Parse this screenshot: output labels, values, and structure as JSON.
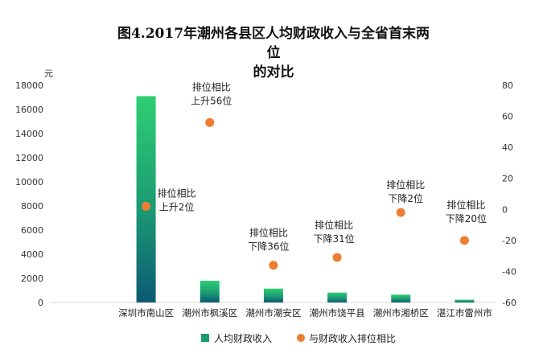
{
  "chart_data": {
    "type": "bar",
    "title_lines": [
      "图4.2017年潮州各县区人均财政收入与全省首末两",
      "位",
      "的对比"
    ],
    "y_unit_left": "元",
    "categories": [
      "深圳市南山区",
      "潮州市枫溪区",
      "潮州市潮安区",
      "潮州市饶平县",
      "潮州市湘桥区",
      "湛江市雷州市"
    ],
    "series": [
      {
        "name": "人均财政收入",
        "type": "bar",
        "axis": "left",
        "values": [
          17100,
          1800,
          1150,
          820,
          650,
          230
        ]
      },
      {
        "name": "与财政收入排位相比",
        "type": "scatter",
        "axis": "right",
        "values": [
          2,
          56,
          -36,
          -31,
          -2,
          -20
        ]
      }
    ],
    "annotations": [
      {
        "category_index": 0,
        "lines": [
          "排位相比",
          "上升2位"
        ]
      },
      {
        "category_index": 1,
        "lines": [
          "排位相比",
          "上升56位"
        ]
      },
      {
        "category_index": 2,
        "lines": [
          "排位相比",
          "下降36位"
        ]
      },
      {
        "category_index": 3,
        "lines": [
          "排位相比",
          "下降31位"
        ]
      },
      {
        "category_index": 4,
        "lines": [
          "排位相比",
          "下降2位"
        ]
      },
      {
        "category_index": 5,
        "lines": [
          "排位相比",
          "下降20位"
        ]
      }
    ],
    "y_left": {
      "min": 0,
      "max": 18000,
      "step": 2000
    },
    "y_right": {
      "min": -60,
      "max": 80,
      "step": 20
    },
    "legend_position": "bottom",
    "grid": false,
    "colors": {
      "bar_top": "#2fcf73",
      "bar_bottom": "#0b5a73",
      "dot": "#ed7d31"
    }
  }
}
